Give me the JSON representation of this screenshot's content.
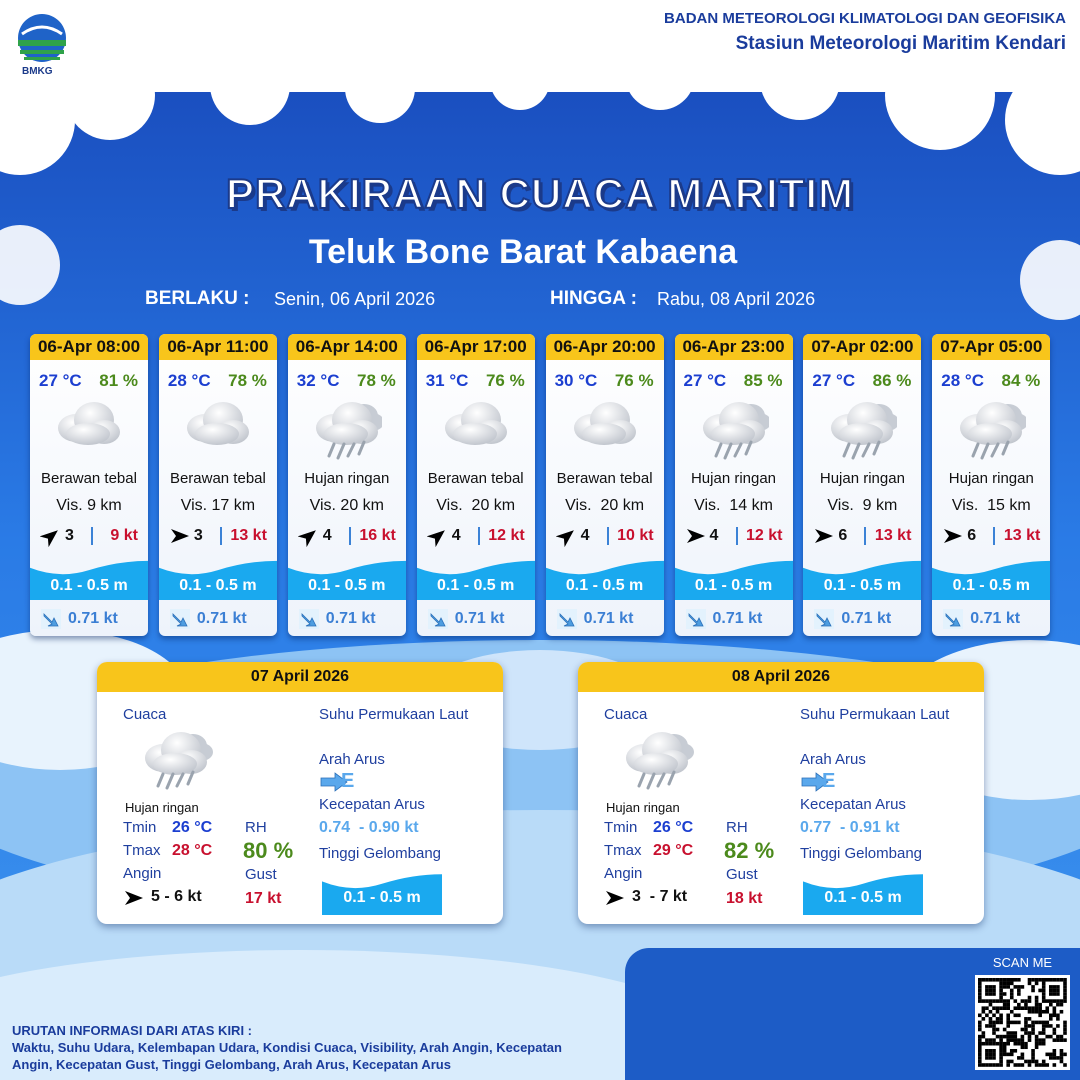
{
  "header": {
    "logo": "BMKG",
    "agency": "BADAN METEOROLOGI KLIMATOLOGI DAN GEOFISIKA",
    "station": "Stasiun Meteorologi Maritim Kendari"
  },
  "title": "PRAKIRAAN CUACA MARITIM",
  "area": "Teluk Bone Barat Kabaena",
  "validity": {
    "from_label": "BERLAKU :",
    "from": "Senin, 06 April 2026",
    "to_label": "HINGGA :",
    "to": "Rabu, 08 April 2026"
  },
  "forecasts": [
    {
      "time": "06-Apr 08:00",
      "temperature": "27 °C",
      "humidity": "81 %",
      "weather": "Berawan tebal",
      "visibility": "Vis. 9 km",
      "wind": "3",
      "gust": "9 kt",
      "wave": "0.1 - 0.5 m",
      "current": "0.71 kt"
    },
    {
      "time": "06-Apr 11:00",
      "temperature": "28 °C",
      "humidity": "78 %",
      "weather": "Berawan tebal",
      "visibility": "Vis. 17 km",
      "wind": "3",
      "gust": "13 kt",
      "wave": "0.1 - 0.5 m",
      "current": "0.71 kt"
    },
    {
      "time": "06-Apr 14:00",
      "temperature": "32 °C",
      "humidity": "78 %",
      "weather": "Hujan ringan",
      "visibility": "Vis. 20 km",
      "wind": "4",
      "gust": "16 kt",
      "wave": "0.1 - 0.5 m",
      "current": "0.71 kt"
    },
    {
      "time": "06-Apr 17:00",
      "temperature": "31 °C",
      "humidity": "76 %",
      "weather": "Berawan tebal",
      "visibility": "Vis.  20 km",
      "wind": "4",
      "gust": "12 kt",
      "wave": "0.1 - 0.5 m",
      "current": "0.71 kt"
    },
    {
      "time": "06-Apr 20:00",
      "temperature": "30 °C",
      "humidity": "76 %",
      "weather": "Berawan tebal",
      "visibility": "Vis.  20 km",
      "wind": "4",
      "gust": "10 kt",
      "wave": "0.1 - 0.5 m",
      "current": "0.71 kt"
    },
    {
      "time": "06-Apr 23:00",
      "temperature": "27 °C",
      "humidity": "85 %",
      "weather": "Hujan ringan",
      "visibility": "Vis.  14 km",
      "wind": "4",
      "gust": "12 kt",
      "wave": "0.1 - 0.5 m",
      "current": "0.71 kt"
    },
    {
      "time": "07-Apr 02:00",
      "temperature": "27 °C",
      "humidity": "86 %",
      "weather": "Hujan ringan",
      "visibility": "Vis.  9 km",
      "wind": "6",
      "gust": "13 kt",
      "wave": "0.1 - 0.5 m",
      "current": "0.71 kt"
    },
    {
      "time": "07-Apr 05:00",
      "temperature": "28 °C",
      "humidity": "84 %",
      "weather": "Hujan ringan",
      "visibility": "Vis.  15 km",
      "wind": "6",
      "gust": "13 kt",
      "wave": "0.1 - 0.5 m",
      "current": "0.71 kt"
    }
  ],
  "daily_labels": {
    "weather": "Cuaca",
    "sst": "Suhu Permukaan Laut",
    "tmin": "Tmin",
    "tmax": "Tmax",
    "rh": "RH",
    "wind": "Angin",
    "gust": "Gust",
    "current_dir": "Arah Arus",
    "current_speed": "Kecepatan Arus",
    "wave": "Tinggi Gelombang"
  },
  "daily": [
    {
      "date": "07 April 2026",
      "weather": "Hujan ringan",
      "tmin": "26 °C",
      "tmax": "28 °C",
      "rh": "80 %",
      "wind": "5 - 6 kt",
      "gust": "17 kt",
      "current_dir": "E",
      "current_speed": "0.74  - 0.90 kt",
      "wave": "0.1 - 0.5 m"
    },
    {
      "date": "08 April 2026",
      "weather": "Hujan ringan",
      "tmin": "26 °C",
      "tmax": "29 °C",
      "rh": "82 %",
      "wind": "3  - 7 kt",
      "gust": "18 kt",
      "current_dir": "E",
      "current_speed": "0.77  - 0.91 kt",
      "wave": "0.1 - 0.5 m"
    }
  ],
  "qr_label": "SCAN ME",
  "footer": {
    "title": "URUTAN INFORMASI DARI ATAS KIRI :",
    "text": "Waktu, Suhu Udara, Kelembapan Udara, Kondisi Cuaca, Visibility, Arah Angin, Kecepatan Angin, Kecepatan Gust, Tinggi Gelombang, Arah Arus, Kecepatan Arus"
  }
}
